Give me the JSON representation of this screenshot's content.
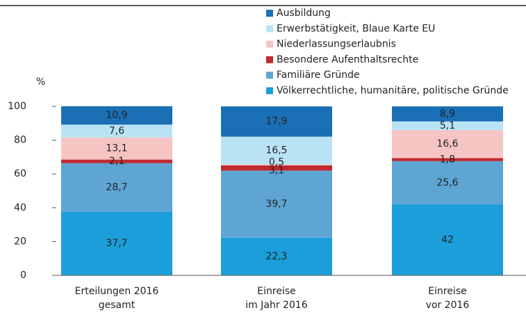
{
  "chart_data": {
    "type": "stacked_bar",
    "y_label": "%",
    "categories": [
      "Erteilungen 2016\ngesamt",
      "Einreise\nim Jahr 2016",
      "Einreise\nvor 2016"
    ],
    "series": [
      {
        "name": "Völkerrechtliche, humanitäre, politische Gründe",
        "color": "#1b9ed9",
        "values": [
          37.7,
          22.3,
          42
        ],
        "value_labels": [
          "37,7",
          "22,3",
          "42"
        ]
      },
      {
        "name": "Familiäre Gründe",
        "color": "#5ea5d4",
        "values": [
          28.7,
          39.7,
          25.6
        ],
        "value_labels": [
          "28,7",
          "39,7",
          "25,6"
        ]
      },
      {
        "name": "Besondere Aufenthaltsrechte",
        "color": "#c0282d",
        "values": [
          2.1,
          3.1,
          1.8
        ],
        "value_labels": [
          "2,1",
          "3,1",
          "1,8"
        ]
      },
      {
        "name": "Niederlassungserlaubnis",
        "color": "#f7c4c4",
        "values": [
          13.1,
          0.5,
          16.6
        ],
        "value_labels": [
          "13,1",
          "0,5",
          "16,6"
        ]
      },
      {
        "name": "Erwerbstätigkeit, Blaue Karte EU",
        "color": "#b9e3f5",
        "values": [
          7.6,
          16.5,
          5.1
        ],
        "value_labels": [
          "7,6",
          "16,5",
          "5,1"
        ]
      },
      {
        "name": "Ausbildung",
        "color": "#1a6fb5",
        "values": [
          10.9,
          17.9,
          8.9
        ],
        "value_labels": [
          "10,9",
          "17,9",
          "8,9"
        ]
      }
    ],
    "ylim": [
      0,
      100
    ],
    "yticks": [
      0,
      20,
      40,
      60,
      80,
      100
    ]
  }
}
